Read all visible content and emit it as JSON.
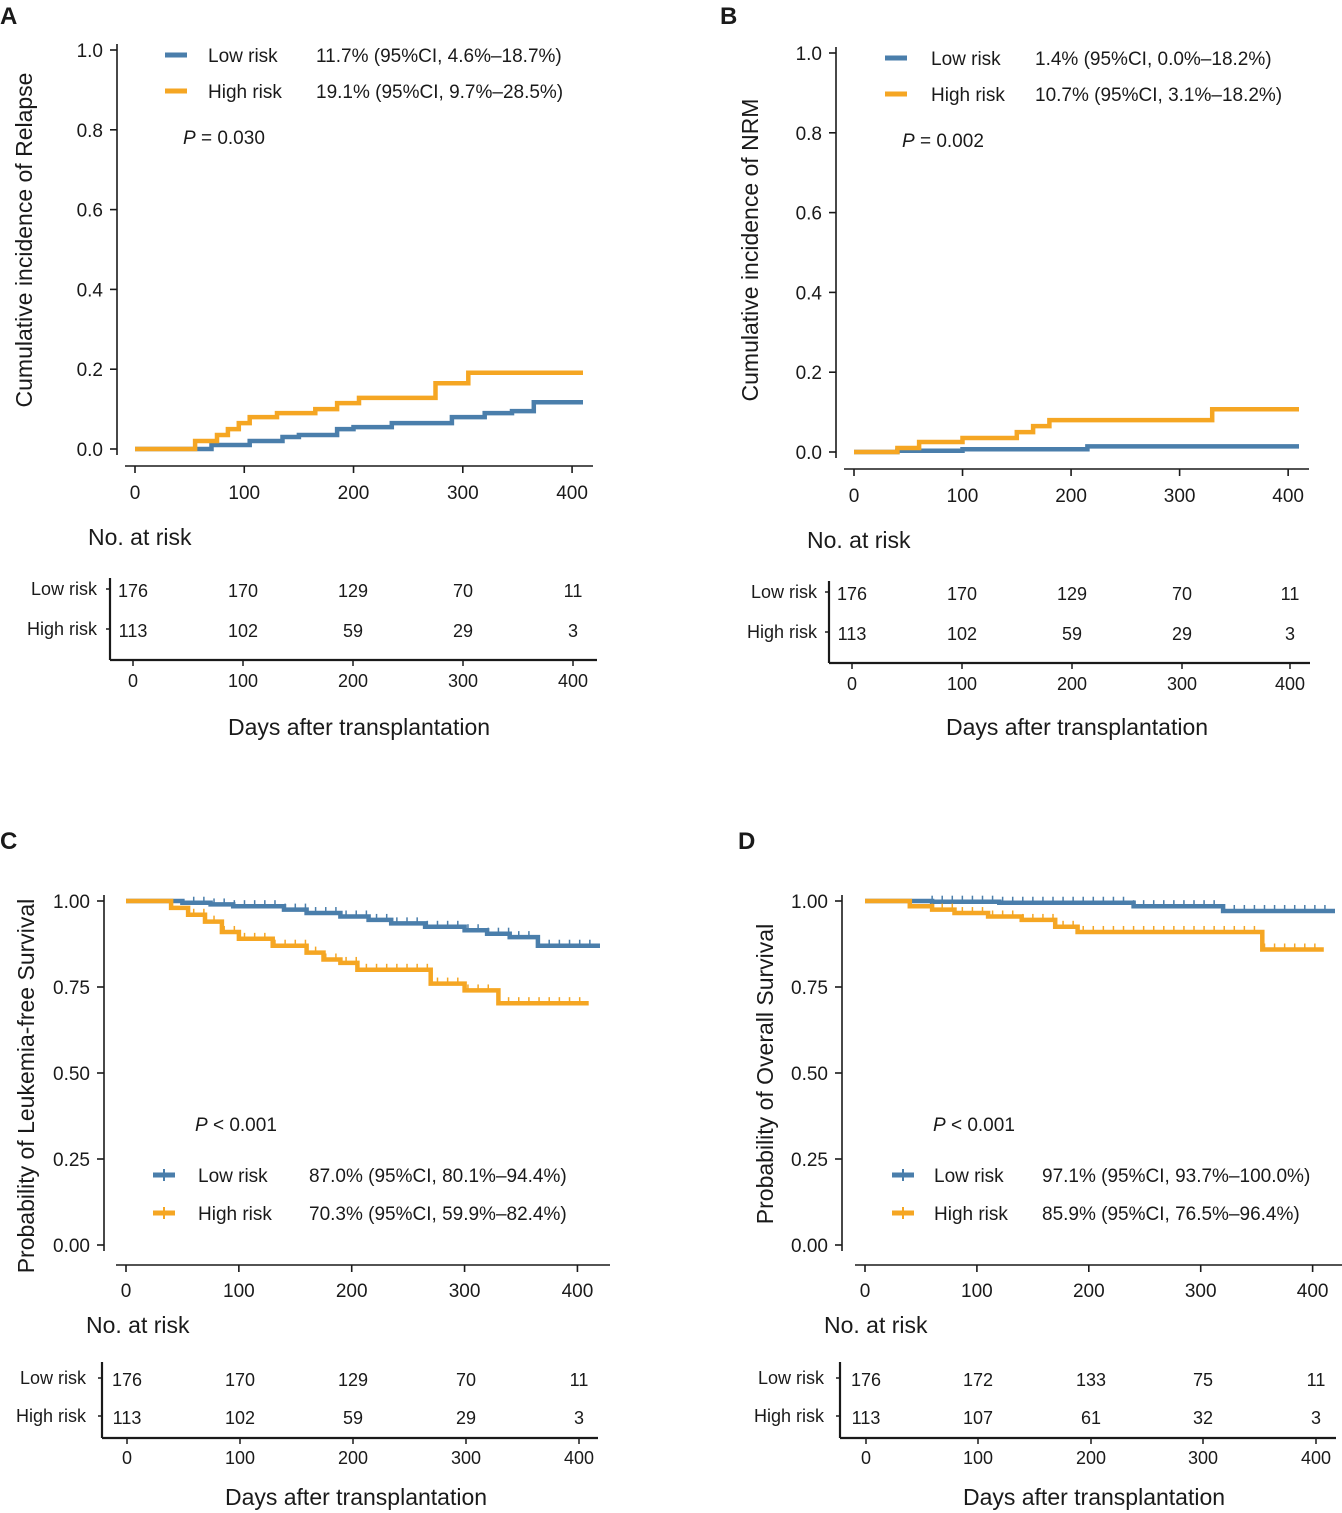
{
  "figure": {
    "x_label": "Days after transplantation",
    "risk_title": "No. at risk",
    "colors": {
      "low": "#4a7eab",
      "high": "#f5a623",
      "axis": "#1a1a1a"
    }
  },
  "chart_data": [
    {
      "panel": "A",
      "type": "line",
      "ylabel": "Cumulative incidence of Relapse",
      "xlim": [
        0,
        410
      ],
      "ylim": [
        0,
        1
      ],
      "xticks": [
        "0",
        "100",
        "200",
        "300",
        "400"
      ],
      "yticks": [
        "0.0",
        "0.2",
        "0.4",
        "0.6",
        "0.8",
        "1.0"
      ],
      "p_value": {
        "label": "P",
        "text": " = 0.030"
      },
      "legend_position": "top",
      "legend": [
        {
          "name": "Low risk",
          "estimate": "11.7% (95%CI, 4.6%–18.7%)"
        },
        {
          "name": "High risk",
          "estimate": "19.1% (95%CI, 9.7%–28.5%)"
        }
      ],
      "series": [
        {
          "name": "Low risk",
          "x": [
            0,
            60,
            70,
            105,
            135,
            150,
            185,
            200,
            235,
            290,
            320,
            345,
            365,
            410
          ],
          "y": [
            0,
            0,
            0.01,
            0.02,
            0.03,
            0.035,
            0.05,
            0.055,
            0.065,
            0.08,
            0.09,
            0.095,
            0.117,
            0.117
          ]
        },
        {
          "name": "High risk",
          "x": [
            0,
            55,
            75,
            85,
            95,
            105,
            130,
            165,
            185,
            205,
            275,
            305,
            410
          ],
          "y": [
            0,
            0.02,
            0.035,
            0.05,
            0.065,
            0.08,
            0.09,
            0.1,
            0.115,
            0.128,
            0.165,
            0.191,
            0.191
          ]
        }
      ],
      "risk_table": {
        "rows": [
          "Low risk",
          "High risk"
        ],
        "values": [
          [
            "176",
            "170",
            "129",
            "70",
            "11"
          ],
          [
            "113",
            "102",
            "59",
            "29",
            "3"
          ]
        ]
      }
    },
    {
      "panel": "B",
      "type": "line",
      "ylabel": "Cumulative incidence of NRM",
      "xlim": [
        0,
        410
      ],
      "ylim": [
        0,
        1
      ],
      "xticks": [
        "0",
        "100",
        "200",
        "300",
        "400"
      ],
      "yticks": [
        "0.0",
        "0.2",
        "0.4",
        "0.6",
        "0.8",
        "1.0"
      ],
      "p_value": {
        "label": "P",
        "text": " = 0.002"
      },
      "legend_position": "top",
      "legend": [
        {
          "name": "Low risk",
          "estimate": "1.4% (95%CI, 0.0%–18.2%)"
        },
        {
          "name": "High risk",
          "estimate": "10.7% (95%CI, 3.1%–18.2%)"
        }
      ],
      "series": [
        {
          "name": "Low risk",
          "x": [
            0,
            40,
            100,
            215,
            410
          ],
          "y": [
            0,
            0.003,
            0.007,
            0.014,
            0.014
          ]
        },
        {
          "name": "High risk",
          "x": [
            0,
            40,
            60,
            100,
            150,
            165,
            180,
            330,
            410
          ],
          "y": [
            0,
            0.01,
            0.025,
            0.035,
            0.05,
            0.065,
            0.08,
            0.107,
            0.107
          ]
        }
      ],
      "risk_table": {
        "rows": [
          "Low risk",
          "High risk"
        ],
        "values": [
          [
            "176",
            "170",
            "129",
            "70",
            "11"
          ],
          [
            "113",
            "102",
            "59",
            "29",
            "3"
          ]
        ]
      }
    },
    {
      "panel": "C",
      "type": "line",
      "ylabel": "Probability of Leukemia-free Survival",
      "xlim": [
        0,
        420
      ],
      "ylim": [
        0,
        1
      ],
      "xticks": [
        "0",
        "100",
        "200",
        "300",
        "400"
      ],
      "yticks": [
        "0.00",
        "0.25",
        "0.50",
        "0.75",
        "1.00"
      ],
      "p_value": {
        "label": "P",
        "text": " < 0.001"
      },
      "legend_position": "bottom",
      "legend": [
        {
          "name": "Low risk",
          "estimate": "87.0% (95%CI, 80.1%–94.4%)"
        },
        {
          "name": "High risk",
          "estimate": "70.3% (95%CI, 59.9%–82.4%)"
        }
      ],
      "series": [
        {
          "name": "Low risk",
          "x": [
            0,
            50,
            75,
            95,
            140,
            160,
            190,
            215,
            235,
            265,
            300,
            320,
            340,
            365,
            420
          ],
          "y": [
            1,
            0.995,
            0.99,
            0.985,
            0.975,
            0.965,
            0.955,
            0.945,
            0.935,
            0.925,
            0.915,
            0.905,
            0.895,
            0.87,
            0.87
          ]
        },
        {
          "name": "High risk",
          "x": [
            0,
            40,
            55,
            70,
            85,
            100,
            130,
            160,
            175,
            190,
            205,
            270,
            300,
            330,
            410
          ],
          "y": [
            1,
            0.98,
            0.96,
            0.94,
            0.91,
            0.89,
            0.87,
            0.85,
            0.83,
            0.82,
            0.8,
            0.76,
            0.74,
            0.703,
            0.703
          ]
        }
      ],
      "risk_table": {
        "rows": [
          "Low risk",
          "High risk"
        ],
        "values": [
          [
            "176",
            "170",
            "129",
            "70",
            "11"
          ],
          [
            "113",
            "102",
            "59",
            "29",
            "3"
          ]
        ]
      }
    },
    {
      "panel": "D",
      "type": "line",
      "ylabel": "Probability of Overall Survival",
      "xlim": [
        0,
        420
      ],
      "ylim": [
        0,
        1
      ],
      "xticks": [
        "0",
        "100",
        "200",
        "300",
        "400"
      ],
      "yticks": [
        "0.00",
        "0.25",
        "0.50",
        "0.75",
        "1.00"
      ],
      "p_value": {
        "label": "P",
        "text": " < 0.001"
      },
      "legend_position": "bottom",
      "legend": [
        {
          "name": "Low risk",
          "estimate": "97.1% (95%CI, 93.7%–100.0%)"
        },
        {
          "name": "High risk",
          "estimate": "85.9% (95%CI, 76.5%–96.4%)"
        }
      ],
      "series": [
        {
          "name": "Low risk",
          "x": [
            0,
            60,
            120,
            240,
            320,
            420
          ],
          "y": [
            1,
            0.998,
            0.995,
            0.985,
            0.971,
            0.971
          ]
        },
        {
          "name": "High risk",
          "x": [
            0,
            40,
            60,
            80,
            110,
            140,
            170,
            190,
            355,
            410
          ],
          "y": [
            1,
            0.985,
            0.975,
            0.965,
            0.955,
            0.945,
            0.925,
            0.91,
            0.859,
            0.859
          ]
        }
      ],
      "risk_table": {
        "rows": [
          "Low risk",
          "High risk"
        ],
        "values": [
          [
            "176",
            "172",
            "133",
            "75",
            "11"
          ],
          [
            "113",
            "107",
            "61",
            "32",
            "3"
          ]
        ]
      }
    }
  ]
}
